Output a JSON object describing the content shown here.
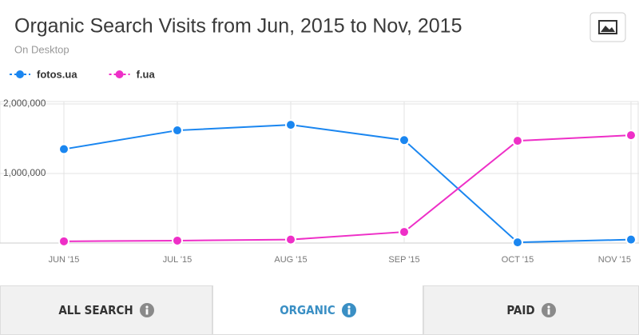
{
  "chart_data": {
    "type": "line",
    "title": "Organic Search Visits from Jun, 2015 to Nov, 2015",
    "subtitle": "On Desktop",
    "categories": [
      "JUN '15",
      "JUL '15",
      "AUG '15",
      "SEP '15",
      "OCT '15",
      "NOV '15"
    ],
    "series": [
      {
        "name": "fotos.ua",
        "color": "#1a86f0",
        "values": [
          1350000,
          1620000,
          1700000,
          1480000,
          10000,
          50000
        ]
      },
      {
        "name": "f.ua",
        "color": "#ee2fc7",
        "values": [
          25000,
          35000,
          50000,
          160000,
          1470000,
          1550000
        ]
      }
    ],
    "ylim": [
      0,
      2000000
    ],
    "yticks": [
      {
        "value": 1000000,
        "label": "1,000,000"
      },
      {
        "value": 2000000,
        "label": "2,000,000"
      }
    ],
    "grid": true
  },
  "tabs": [
    "ALL SEARCH",
    "ORGANIC",
    "PAID"
  ]
}
